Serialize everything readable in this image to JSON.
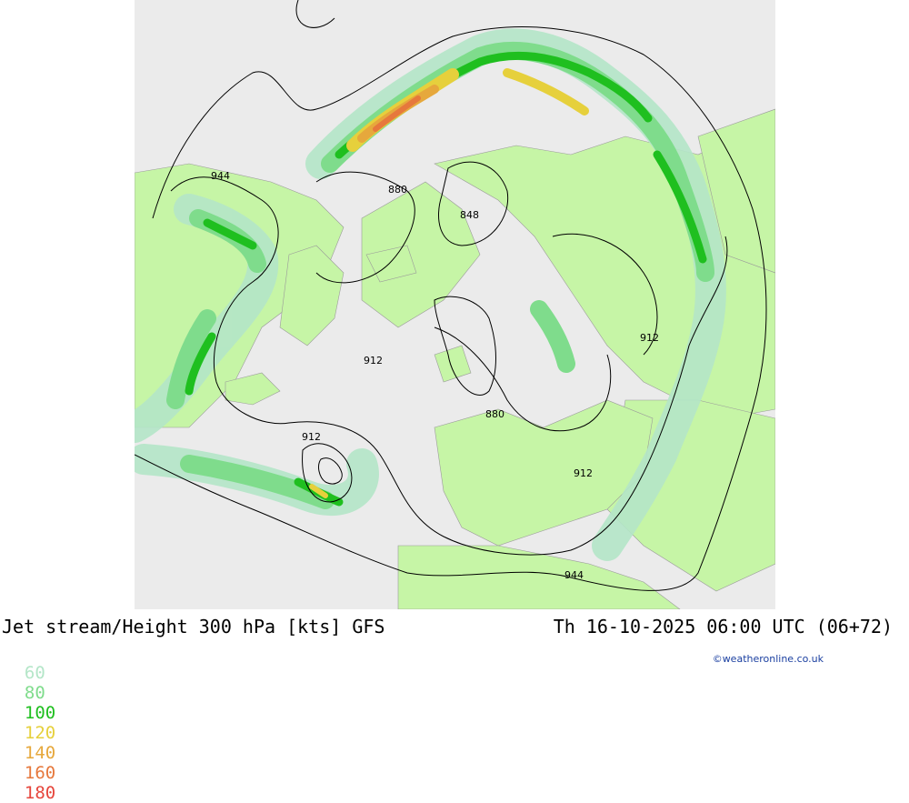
{
  "title": {
    "left": "Jet stream/Height 300 hPa [kts] GFS",
    "right": "Th 16-10-2025 06:00 UTC (06+72)"
  },
  "legend": [
    {
      "label": "60",
      "color": "#b4e6c8"
    },
    {
      "label": "80",
      "color": "#7fdc8c"
    },
    {
      "label": "100",
      "color": "#1fbf1f"
    },
    {
      "label": "120",
      "color": "#e6d03c"
    },
    {
      "label": "140",
      "color": "#e6a83c"
    },
    {
      "label": "160",
      "color": "#e6783c"
    },
    {
      "label": "180",
      "color": "#e6463c"
    }
  ],
  "credit": "©weatheronline.co.uk",
  "contour_labels": [
    "944",
    "880",
    "848",
    "912",
    "880",
    "912",
    "912",
    "912",
    "944"
  ],
  "colors": {
    "sea": "#ebebeb",
    "land": "#c6f5a6",
    "jet_60": "#b4e6c8",
    "jet_80": "#7fdc8c",
    "jet_100": "#1fbf1f",
    "jet_120": "#e6d03c",
    "jet_140": "#e6a83c",
    "jet_160": "#e6783c"
  }
}
